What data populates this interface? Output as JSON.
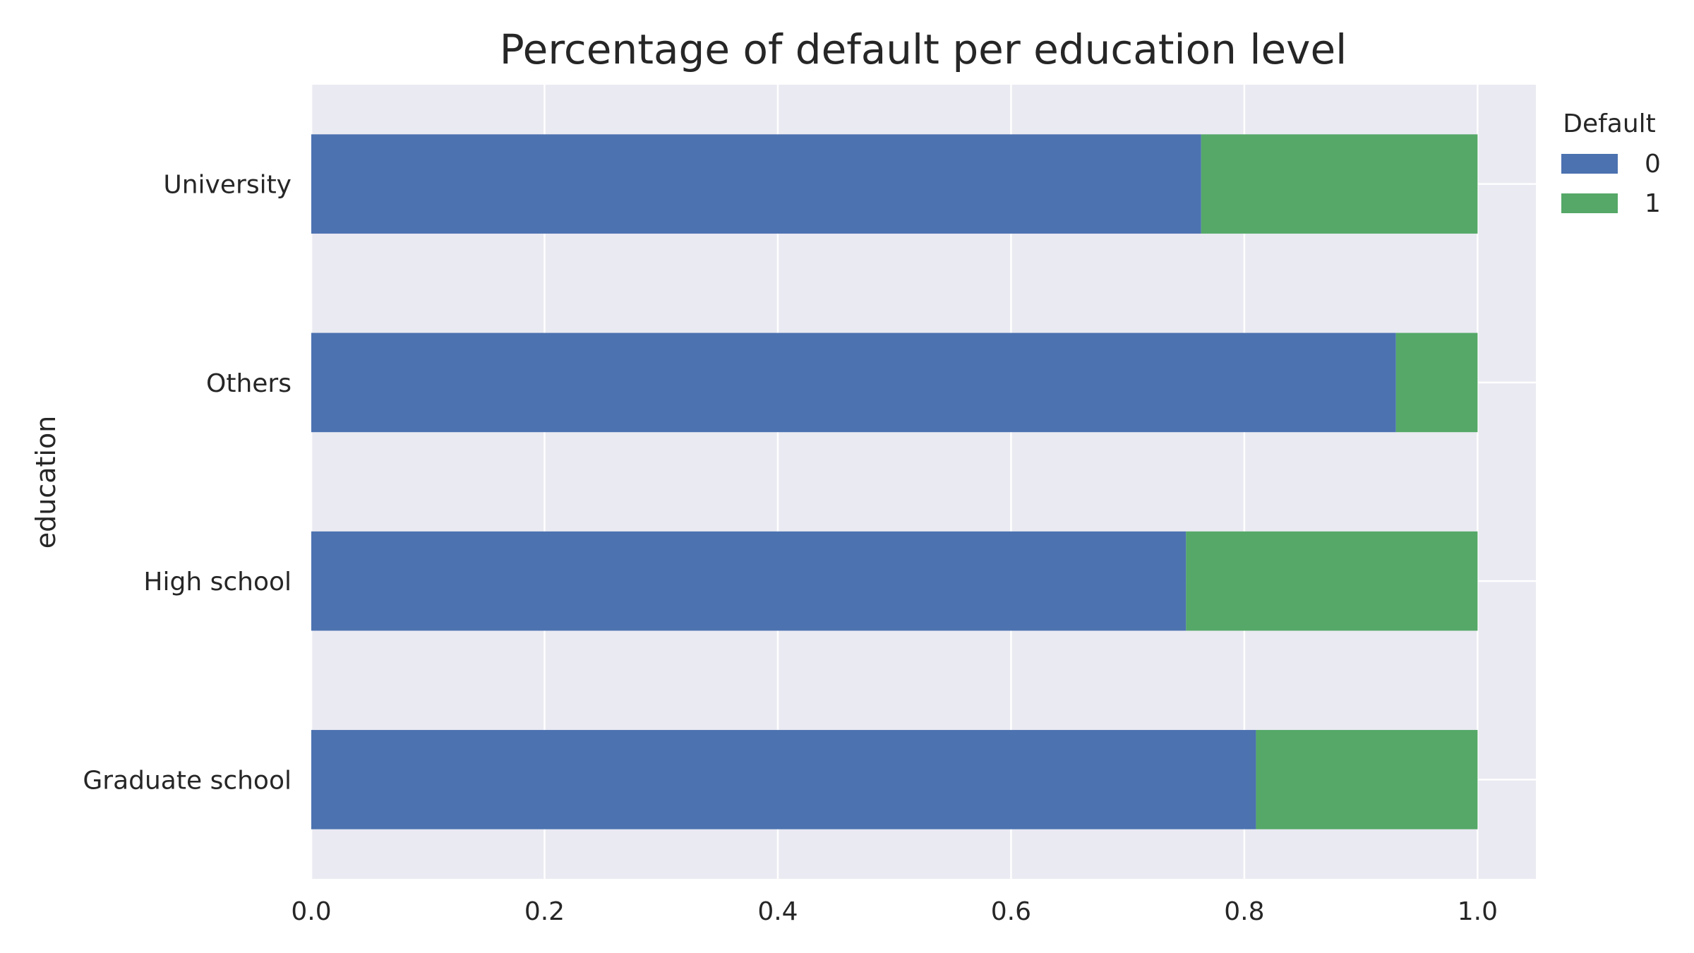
{
  "chart_data": {
    "type": "bar",
    "orientation": "horizontal",
    "stacked": true,
    "title": "Percentage of default per education level",
    "xlabel": "",
    "ylabel": "education",
    "categories": [
      "Graduate school",
      "High school",
      "Others",
      "University"
    ],
    "series": [
      {
        "name": "0",
        "color": "#4c72b0",
        "values": [
          0.81,
          0.75,
          0.93,
          0.763
        ]
      },
      {
        "name": "1",
        "color": "#55a868",
        "values": [
          0.19,
          0.25,
          0.07,
          0.237
        ]
      }
    ],
    "xlim": [
      0,
      1.05
    ],
    "xticks": [
      "0.0",
      "0.2",
      "0.4",
      "0.6",
      "0.8",
      "1.0"
    ],
    "grid": true,
    "legend": {
      "title": "Default",
      "placement": "outside-top-right"
    },
    "colors": {
      "background": "#eaeaf2",
      "grid": "#ffffff"
    }
  }
}
